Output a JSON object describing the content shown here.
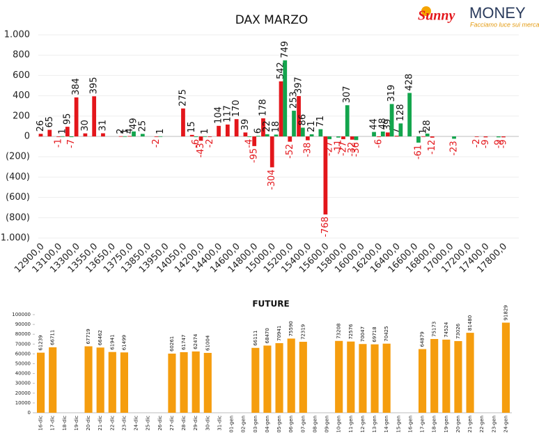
{
  "logo": {
    "brand": "Sunny",
    "brand2": "MONEY",
    "tagline": "Facciamo luce sui mercati"
  },
  "chart_data": [
    {
      "type": "bar",
      "title": "DAX MARZO",
      "categories": [
        "12900,0",
        null,
        "13100,0",
        null,
        "13300,0",
        null,
        "13550,0",
        null,
        "13650,0",
        null,
        "13750,0",
        null,
        "13850,0",
        null,
        "13950,0",
        null,
        "14050,0",
        null,
        "14200,0",
        null,
        "14400,0",
        null,
        "14600,0",
        null,
        "14800,0",
        null,
        "15000,0",
        null,
        "15200,0",
        null,
        "15400,0",
        null,
        "15600,0",
        null,
        "15800,0",
        null,
        "16000,0",
        null,
        "16200,0",
        null,
        "16400,0",
        null,
        "16600,0",
        null,
        "16800,0",
        null,
        "17000,0",
        null,
        "17200,0",
        null,
        "17400,0",
        null,
        "17800,0",
        null
      ],
      "series": [
        {
          "color": "#e3161b",
          "values": [
            26,
            65,
            -1,
            95,
            384,
            30,
            395,
            31,
            null,
            2,
            4,
            null,
            null,
            -2,
            null,
            null,
            275,
            15,
            -43,
            -2,
            104,
            117,
            170,
            39,
            -95,
            178,
            -304,
            542,
            -52,
            397,
            -38,
            null,
            -768,
            null,
            -27,
            -32,
            null,
            null,
            -6,
            39,
            7,
            null,
            null,
            1,
            -12,
            null,
            null,
            null,
            null,
            -2,
            -9,
            null,
            -9,
            null
          ]
        },
        {
          "color": "#13a54d",
          "values": [
            null,
            null,
            1,
            -7,
            null,
            null,
            null,
            null,
            null,
            1,
            49,
            25,
            null,
            1,
            null,
            null,
            null,
            -6,
            1,
            null,
            null,
            null,
            null,
            -4,
            6,
            22,
            18,
            749,
            253,
            86,
            21,
            71,
            -27,
            -11,
            307,
            -36,
            null,
            44,
            48,
            319,
            128,
            428,
            -61,
            28,
            null,
            null,
            -23,
            null,
            null,
            null,
            null,
            -9,
            null,
            null
          ]
        }
      ],
      "ylim": [
        -1000,
        1000
      ],
      "yticks": [
        {
          "value": -1000,
          "label": "(1.000)"
        },
        {
          "value": -800,
          "label": "(800)"
        },
        {
          "value": -600,
          "label": "(600)"
        },
        {
          "value": -400,
          "label": "(400)"
        },
        {
          "value": -200,
          "label": "(200)"
        },
        0,
        200,
        400,
        600,
        800,
        {
          "value": 1000,
          "label": "1.000"
        }
      ],
      "grid": true
    },
    {
      "type": "bar",
      "title": "FUTURE",
      "color": "#f59d0e",
      "categories": [
        "16-dic",
        "17-dic",
        "18-dic",
        "19-dic",
        "20-dic",
        "21-dic",
        "22-dic",
        "23-dic",
        "24-dic",
        "25-dic",
        "26-dic",
        "27-dic",
        "28-dic",
        "29-dic",
        "30-dic",
        "31-dic",
        "01-gen",
        "02-gen",
        "03-gen",
        "04-gen",
        "05-gen",
        "06-gen",
        "07-gen",
        "08-gen",
        "09-gen",
        "10-gen",
        "11-gen",
        "12-gen",
        "13-gen",
        "14-gen",
        "15-gen",
        "16-gen",
        "17-gen",
        "18-gen",
        "19-gen",
        "20-gen",
        "21-gen",
        "22-gen",
        "23-gen",
        "24-gen"
      ],
      "values": [
        61239,
        66711,
        null,
        null,
        67719,
        66462,
        61941,
        61499,
        null,
        null,
        null,
        60261,
        61747,
        62474,
        61004,
        null,
        null,
        null,
        66111,
        68470,
        70941,
        75590,
        72319,
        null,
        null,
        73208,
        72576,
        70047,
        69718,
        70425,
        null,
        null,
        64879,
        75173,
        74524,
        73026,
        81480,
        null,
        null,
        91829
      ],
      "ylim": [
        0,
        100000
      ],
      "yticks": [
        0,
        10000,
        20000,
        30000,
        40000,
        50000,
        60000,
        70000,
        80000,
        90000,
        100000
      ],
      "grid": false
    }
  ]
}
